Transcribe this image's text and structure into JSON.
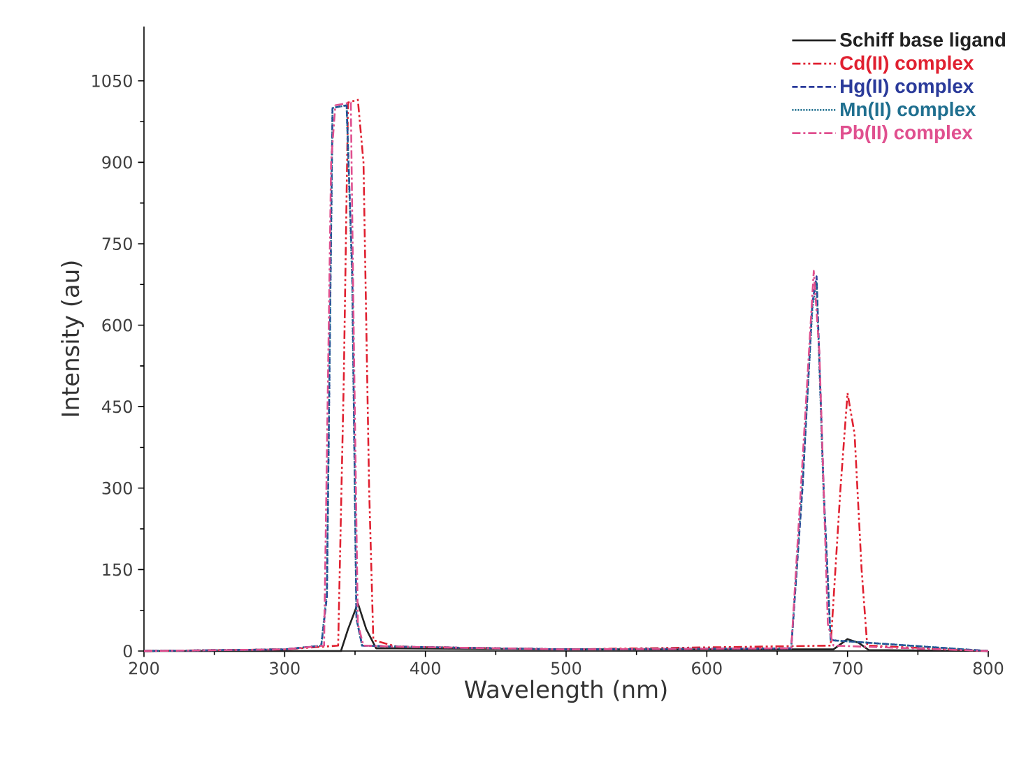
{
  "chart_data": {
    "type": "line",
    "xlabel": "Wavelength (nm)",
    "ylabel": "Intensity (au)",
    "xlim": [
      200,
      800
    ],
    "ylim": [
      0,
      1150
    ],
    "xticks": [
      200,
      300,
      400,
      500,
      600,
      700,
      800
    ],
    "yticks": [
      0,
      150,
      300,
      450,
      600,
      750,
      900,
      1050
    ],
    "legend": "top right",
    "grid": false,
    "series": [
      {
        "name": "Schiff base ligand",
        "color": "#222222",
        "line_style": "solid",
        "x": [
          200,
          300,
          340,
          345,
          352,
          358,
          365,
          380,
          500,
          690,
          700,
          708,
          715,
          800
        ],
        "values": [
          0,
          0,
          0,
          40,
          88,
          40,
          5,
          5,
          3,
          3,
          22,
          15,
          2,
          0
        ]
      },
      {
        "name": "Cd(II) complex",
        "color": "#e02030",
        "line_style": "dashdotdot",
        "x": [
          200,
          300,
          338,
          342,
          345,
          352,
          356,
          360,
          363,
          380,
          500,
          688,
          695,
          700,
          705,
          710,
          714,
          800
        ],
        "values": [
          0,
          3,
          10,
          500,
          1010,
          1015,
          900,
          300,
          20,
          8,
          3,
          10,
          300,
          475,
          400,
          150,
          10,
          0
        ]
      },
      {
        "name": "Hg(II) complex",
        "color": "#2a3a9a",
        "line_style": "dashed",
        "x": [
          200,
          300,
          326,
          330,
          334,
          344,
          348,
          351,
          355,
          380,
          500,
          660,
          668,
          675,
          678,
          683,
          688,
          800
        ],
        "values": [
          0,
          3,
          10,
          100,
          1000,
          1005,
          700,
          60,
          10,
          8,
          3,
          5,
          300,
          640,
          690,
          300,
          20,
          0
        ]
      },
      {
        "name": "Mn(II) complex",
        "color": "#1f6f8f",
        "line_style": "dotted",
        "x": [
          200,
          300,
          326,
          330,
          334,
          344,
          348,
          351,
          355,
          380,
          500,
          660,
          668,
          675,
          678,
          683,
          688,
          800
        ],
        "values": [
          0,
          3,
          10,
          110,
          1000,
          1005,
          680,
          60,
          10,
          8,
          3,
          5,
          310,
          630,
          680,
          290,
          20,
          0
        ]
      },
      {
        "name": "Pb(II) complex",
        "color": "#e0508f",
        "line_style": "dashdot",
        "x": [
          200,
          300,
          328,
          333,
          336,
          347,
          349,
          352,
          356,
          380,
          500,
          660,
          668,
          676,
          680,
          686,
          690,
          800
        ],
        "values": [
          0,
          3,
          10,
          900,
          1005,
          1010,
          600,
          50,
          10,
          8,
          3,
          5,
          350,
          700,
          550,
          50,
          10,
          0
        ]
      }
    ]
  }
}
